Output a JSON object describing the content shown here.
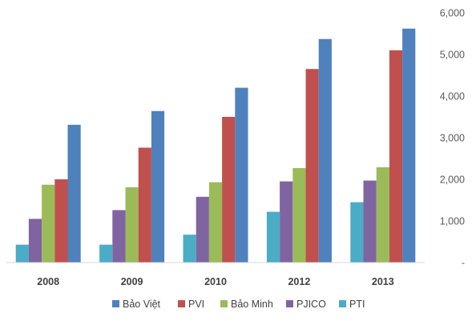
{
  "chart_data": {
    "type": "bar",
    "categories": [
      "2008",
      "2009",
      "2010",
      "2012",
      "2013"
    ],
    "series": [
      {
        "name": "PTI",
        "color": "#4BACC6",
        "values": [
          430,
          430,
          670,
          1220,
          1450
        ]
      },
      {
        "name": "PJICO",
        "color": "#8064A2",
        "values": [
          1050,
          1260,
          1580,
          1950,
          1970
        ]
      },
      {
        "name": "Bảo Minh",
        "color": "#9BBB59",
        "values": [
          1870,
          1810,
          1930,
          2270,
          2290
        ]
      },
      {
        "name": "PVI",
        "color": "#C0504D",
        "values": [
          2000,
          2760,
          3500,
          4650,
          5100
        ]
      },
      {
        "name": "Bảo Việt",
        "color": "#4F81BD",
        "values": [
          3310,
          3640,
          4200,
          5370,
          5620
        ]
      }
    ],
    "legend_order": [
      "Bảo Việt",
      "PVI",
      "Bảo Minh",
      "PJICO",
      "PTI"
    ],
    "y_axis": {
      "position": "right",
      "ylim": [
        0,
        6000
      ],
      "tick_labels": [
        "-",
        "1,000",
        "2,000",
        "3,000",
        "4,000",
        "5,000",
        "6,000"
      ],
      "tick_values": [
        0,
        1000,
        2000,
        3000,
        4000,
        5000,
        6000
      ]
    },
    "grid": false,
    "legend_position": "bottom",
    "title": "",
    "xlabel": "",
    "ylabel": ""
  }
}
